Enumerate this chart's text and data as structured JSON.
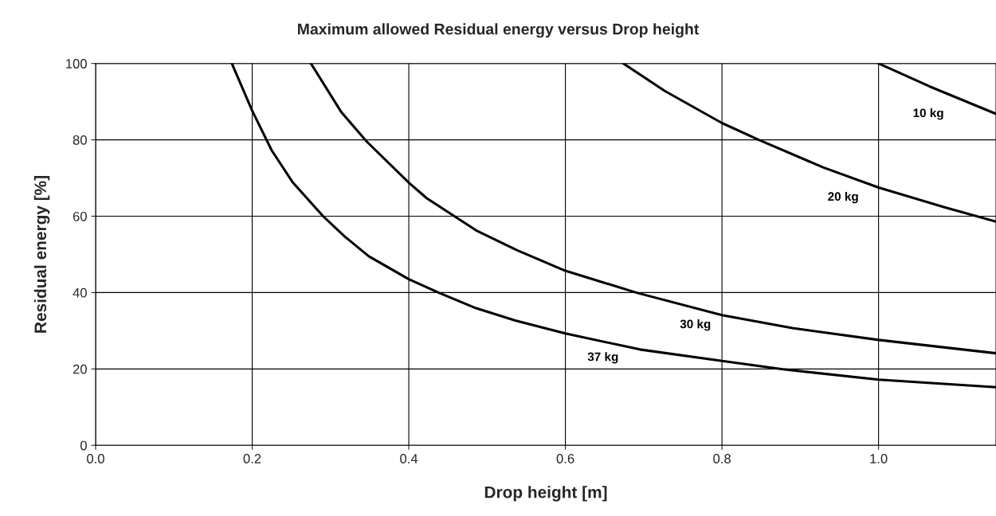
{
  "chart_data": {
    "type": "line",
    "title": "Maximum allowed Residual energy versus Drop height",
    "xlabel": "Drop height [m]",
    "ylabel": "Residual energy [%]",
    "series": [
      {
        "name": "37 kg",
        "color": "#000000",
        "x": [
          0.174,
          0.2,
          0.225,
          0.252,
          0.291,
          0.318,
          0.349,
          0.4,
          0.439,
          0.486,
          0.536,
          0.6,
          0.695,
          0.8,
          0.878,
          1.0,
          1.15
        ],
        "values": [
          100,
          87.6,
          77.2,
          68.8,
          59.9,
          54.7,
          49.5,
          43.5,
          39.9,
          35.9,
          32.7,
          29.3,
          25.1,
          22.1,
          19.9,
          17.2,
          15.2
        ]
      },
      {
        "name": "30 kg",
        "color": "#000000",
        "x": [
          0.275,
          0.314,
          0.346,
          0.4,
          0.423,
          0.459,
          0.486,
          0.538,
          0.6,
          0.692,
          0.8,
          0.89,
          1.0,
          1.15
        ],
        "values": [
          100,
          87.2,
          79.6,
          68.8,
          64.7,
          59.9,
          56.3,
          51.1,
          45.7,
          39.9,
          34.1,
          30.7,
          27.6,
          24.1
        ]
      },
      {
        "name": "20 kg",
        "color": "#000000",
        "x": [
          0.674,
          0.727,
          0.8,
          0.847,
          0.929,
          1.0,
          1.085,
          1.15
        ],
        "values": [
          100,
          92.8,
          84.4,
          80.0,
          72.8,
          67.5,
          62.3,
          58.6
        ]
      },
      {
        "name": "10 kg",
        "color": "#000000",
        "x": [
          1.0,
          1.065,
          1.15
        ],
        "values": [
          100,
          94.0,
          86.8
        ]
      }
    ],
    "xlim": [
      0,
      1.15
    ],
    "ylim": [
      0,
      100
    ],
    "xticks": [
      {
        "value": 0,
        "label": "0.0"
      },
      0.2,
      0.4,
      0.6,
      0.8,
      {
        "value": 1,
        "label": "1.0"
      }
    ],
    "yticks": [
      0,
      20,
      40,
      60,
      80,
      100
    ],
    "grid": true,
    "marker": "none",
    "line_style": "solid"
  }
}
